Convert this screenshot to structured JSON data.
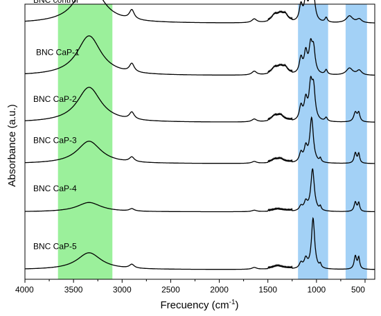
{
  "chart_data": {
    "type": "line",
    "xlabel": "Frecuency (cm",
    "xlabel_sup": "-1",
    "xlabel_suffix": ")",
    "ylabel": "Absorbance (a.u.)",
    "xlim": [
      4000,
      400
    ],
    "x_reversed": true,
    "grid": false,
    "x_ticks": [
      4000,
      3500,
      3000,
      2500,
      2000,
      1500,
      1000,
      500
    ],
    "highlight_bands": [
      {
        "from": 3660,
        "to": 3100,
        "color": "#90ee90"
      },
      {
        "from": 1190,
        "to": 880,
        "color": "#99ccf5"
      },
      {
        "from": 700,
        "to": 480,
        "color": "#99ccf5"
      }
    ],
    "line_color": "#000000",
    "series": [
      {
        "name": "BNC control",
        "baseline_level": 0.93,
        "peaks": [
          {
            "x": 3340,
            "height": 0.95,
            "width": 150
          },
          {
            "x": 2900,
            "height": 0.2,
            "width": 30
          },
          {
            "x": 1640,
            "height": 0.08,
            "width": 30
          },
          {
            "x": 1430,
            "height": 0.13,
            "width": 40
          },
          {
            "x": 1370,
            "height": 0.14,
            "width": 40
          },
          {
            "x": 1320,
            "height": 0.12,
            "width": 30
          },
          {
            "x": 1160,
            "height": 0.35,
            "width": 20
          },
          {
            "x": 1110,
            "height": 0.45,
            "width": 20
          },
          {
            "x": 1060,
            "height": 0.55,
            "width": 20
          },
          {
            "x": 1030,
            "height": 0.48,
            "width": 20
          },
          {
            "x": 900,
            "height": 0.1,
            "width": 15
          },
          {
            "x": 660,
            "height": 0.15,
            "width": 40
          },
          {
            "x": 560,
            "height": 0.08,
            "width": 30
          }
        ]
      },
      {
        "name": "BNC CaP-1",
        "baseline_level": 0.74,
        "peaks": [
          {
            "x": 3340,
            "height": 0.85,
            "width": 150
          },
          {
            "x": 2900,
            "height": 0.18,
            "width": 30
          },
          {
            "x": 1640,
            "height": 0.08,
            "width": 30
          },
          {
            "x": 1430,
            "height": 0.12,
            "width": 40
          },
          {
            "x": 1370,
            "height": 0.13,
            "width": 40
          },
          {
            "x": 1320,
            "height": 0.11,
            "width": 30
          },
          {
            "x": 1160,
            "height": 0.33,
            "width": 20
          },
          {
            "x": 1110,
            "height": 0.44,
            "width": 20
          },
          {
            "x": 1060,
            "height": 0.55,
            "width": 20
          },
          {
            "x": 1030,
            "height": 0.5,
            "width": 20
          },
          {
            "x": 900,
            "height": 0.1,
            "width": 15
          },
          {
            "x": 660,
            "height": 0.15,
            "width": 40
          },
          {
            "x": 560,
            "height": 0.1,
            "width": 30
          }
        ]
      },
      {
        "name": "BNC CaP-2",
        "baseline_level": 0.57,
        "peaks": [
          {
            "x": 3340,
            "height": 0.75,
            "width": 150
          },
          {
            "x": 2900,
            "height": 0.15,
            "width": 30
          },
          {
            "x": 1640,
            "height": 0.06,
            "width": 30
          },
          {
            "x": 1430,
            "height": 0.1,
            "width": 40
          },
          {
            "x": 1370,
            "height": 0.11,
            "width": 40
          },
          {
            "x": 1160,
            "height": 0.3,
            "width": 20
          },
          {
            "x": 1110,
            "height": 0.42,
            "width": 20
          },
          {
            "x": 1060,
            "height": 0.7,
            "width": 20
          },
          {
            "x": 1030,
            "height": 0.65,
            "width": 20
          },
          {
            "x": 900,
            "height": 0.08,
            "width": 15
          },
          {
            "x": 600,
            "height": 0.2,
            "width": 20
          },
          {
            "x": 565,
            "height": 0.18,
            "width": 15
          }
        ]
      },
      {
        "name": "BNC CaP-3",
        "baseline_level": 0.42,
        "peaks": [
          {
            "x": 3340,
            "height": 0.48,
            "width": 150
          },
          {
            "x": 2900,
            "height": 0.1,
            "width": 30
          },
          {
            "x": 1640,
            "height": 0.04,
            "width": 30
          },
          {
            "x": 1430,
            "height": 0.06,
            "width": 40
          },
          {
            "x": 1370,
            "height": 0.07,
            "width": 40
          },
          {
            "x": 1160,
            "height": 0.2,
            "width": 20
          },
          {
            "x": 1110,
            "height": 0.3,
            "width": 20
          },
          {
            "x": 1050,
            "height": 0.95,
            "width": 22
          },
          {
            "x": 960,
            "height": 0.08,
            "width": 10
          },
          {
            "x": 600,
            "height": 0.22,
            "width": 15
          },
          {
            "x": 565,
            "height": 0.2,
            "width": 12
          }
        ]
      },
      {
        "name": "BNC CaP-4",
        "baseline_level": 0.245,
        "peaks": [
          {
            "x": 3340,
            "height": 0.2,
            "width": 150
          },
          {
            "x": 2900,
            "height": 0.05,
            "width": 30
          },
          {
            "x": 1640,
            "height": 0.03,
            "width": 30
          },
          {
            "x": 1400,
            "height": 0.04,
            "width": 60
          },
          {
            "x": 1160,
            "height": 0.1,
            "width": 20
          },
          {
            "x": 1110,
            "height": 0.18,
            "width": 20
          },
          {
            "x": 1040,
            "height": 0.9,
            "width": 22
          },
          {
            "x": 960,
            "height": 0.08,
            "width": 10
          },
          {
            "x": 600,
            "height": 0.2,
            "width": 15
          },
          {
            "x": 565,
            "height": 0.18,
            "width": 12
          }
        ]
      },
      {
        "name": "BNC CaP-5",
        "baseline_level": 0.035,
        "peaks": [
          {
            "x": 3340,
            "height": 0.36,
            "width": 150
          },
          {
            "x": 2900,
            "height": 0.08,
            "width": 30
          },
          {
            "x": 1640,
            "height": 0.04,
            "width": 30
          },
          {
            "x": 1400,
            "height": 0.06,
            "width": 60
          },
          {
            "x": 1160,
            "height": 0.12,
            "width": 20
          },
          {
            "x": 1110,
            "height": 0.2,
            "width": 20
          },
          {
            "x": 1035,
            "height": 1.08,
            "width": 20
          },
          {
            "x": 960,
            "height": 0.08,
            "width": 10
          },
          {
            "x": 600,
            "height": 0.28,
            "width": 15
          },
          {
            "x": 565,
            "height": 0.24,
            "width": 12
          }
        ]
      }
    ]
  }
}
